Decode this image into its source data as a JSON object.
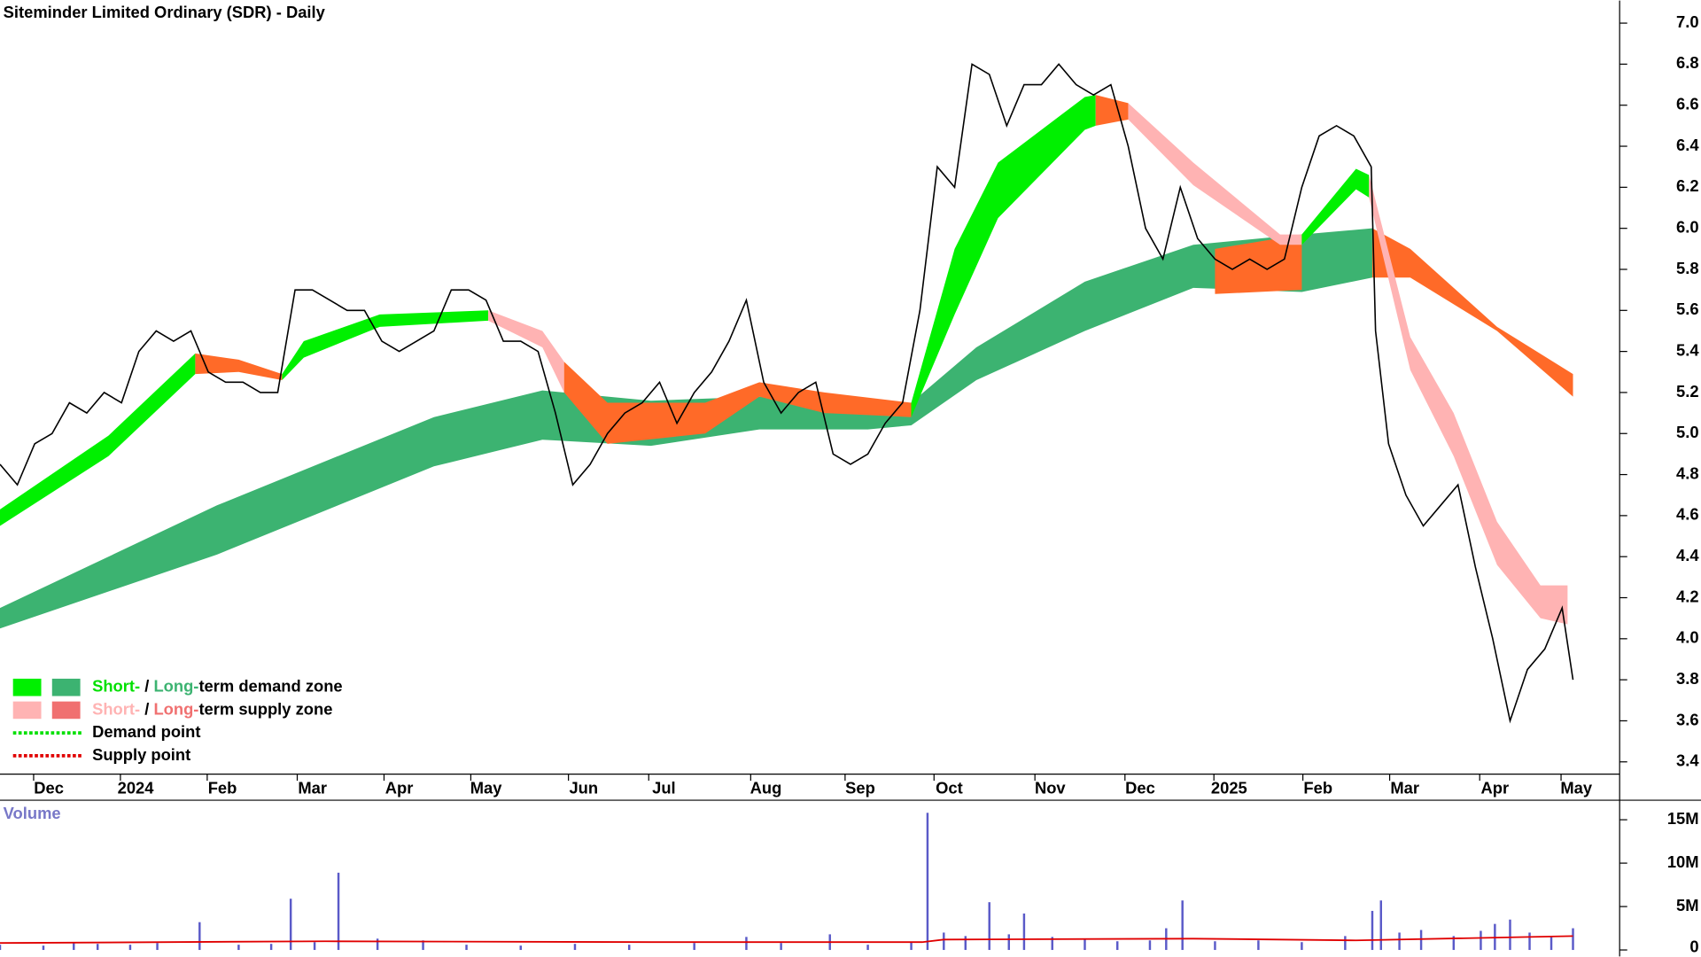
{
  "chart_data": [
    {
      "type": "line",
      "title": "Siteminder Limited Ordinary (SDR) - Daily",
      "xlim": [
        0,
        373.25
      ],
      "xticks": [
        {
          "value": 11.25,
          "label": "Dec"
        },
        {
          "value": 31.25,
          "label": "2024"
        },
        {
          "value": 51.25,
          "label": "Feb"
        },
        {
          "value": 72,
          "label": "Mar"
        },
        {
          "value": 92,
          "label": "Apr"
        },
        {
          "value": 112,
          "label": "May"
        },
        {
          "value": 134.5,
          "label": "Jun"
        },
        {
          "value": 153,
          "label": "Jul"
        },
        {
          "value": 176.5,
          "label": "Aug"
        },
        {
          "value": 198.25,
          "label": "Sep"
        },
        {
          "value": 218.75,
          "label": "Oct"
        },
        {
          "value": 242,
          "label": "Nov"
        },
        {
          "value": 262.75,
          "label": "Dec"
        },
        {
          "value": 283.25,
          "label": "2025"
        },
        {
          "value": 303.75,
          "label": "Feb"
        },
        {
          "value": 323.75,
          "label": "Mar"
        },
        {
          "value": 344.5,
          "label": "Apr"
        },
        {
          "value": 363.25,
          "label": "May"
        }
      ],
      "ylim": [
        3.34,
        7.11
      ],
      "yticks": [
        3.4,
        3.6,
        3.8,
        {
          "value": 4,
          "label": "4.0"
        },
        4.2,
        4.4,
        4.6,
        4.8,
        {
          "value": 5,
          "label": "5.0"
        },
        5.2,
        5.4,
        5.6,
        5.8,
        {
          "value": 6,
          "label": "6.0"
        },
        6.2,
        6.4,
        6.6,
        6.8,
        {
          "value": 7,
          "label": "7.0"
        }
      ],
      "bands": [
        {
          "color": "#3cb371",
          "x": [
            0,
            50,
            100,
            125,
            150,
            175,
            200,
            210,
            225,
            250,
            275,
            300,
            316.25
          ],
          "upper": [
            4.15,
            4.65,
            5.08,
            5.21,
            5.16,
            5.18,
            5.15,
            5.15,
            5.42,
            5.74,
            5.92,
            5.97,
            6.0
          ],
          "lower": [
            4.05,
            4.41,
            4.84,
            4.97,
            4.94,
            5.02,
            5.02,
            5.04,
            5.26,
            5.5,
            5.71,
            5.69,
            5.76
          ]
        },
        {
          "color": "#ff6a28",
          "x": [
            316.25,
            325,
            345,
            362.5
          ],
          "upper": [
            6.0,
            5.9,
            5.52,
            5.29
          ],
          "lower": [
            5.76,
            5.76,
            5.5,
            5.18
          ]
        },
        {
          "color": "#ff6a28",
          "x": [
            280,
            300
          ],
          "upper": [
            5.9,
            5.97
          ],
          "lower": [
            5.68,
            5.7
          ]
        },
        {
          "color": "#00f000",
          "x": [
            0,
            25,
            45
          ],
          "upper": [
            4.63,
            4.99,
            5.39
          ],
          "lower": [
            4.55,
            4.89,
            5.29
          ]
        },
        {
          "color": "#ff6a28",
          "x": [
            45,
            55,
            65
          ],
          "upper": [
            5.39,
            5.36,
            5.29
          ],
          "lower": [
            5.29,
            5.3,
            5.26
          ]
        },
        {
          "color": "#00f000",
          "x": [
            65,
            70,
            87.5,
            112.5
          ],
          "upper": [
            5.29,
            5.45,
            5.58,
            5.6
          ],
          "lower": [
            5.26,
            5.37,
            5.52,
            5.55
          ]
        },
        {
          "color": "#ffb3b3",
          "x": [
            112.5,
            125,
            130
          ],
          "upper": [
            5.6,
            5.5,
            5.35
          ],
          "lower": [
            5.55,
            5.42,
            5.2
          ]
        },
        {
          "color": "#ff6a28",
          "x": [
            130,
            140,
            162.5,
            175,
            190,
            210
          ],
          "upper": [
            5.35,
            5.15,
            5.15,
            5.25,
            5.2,
            5.15
          ],
          "lower": [
            5.2,
            4.95,
            5.0,
            5.18,
            5.1,
            5.08
          ]
        },
        {
          "color": "#00f000",
          "x": [
            210,
            220,
            230,
            250,
            252.5
          ],
          "upper": [
            5.15,
            5.9,
            6.32,
            6.64,
            6.65
          ],
          "lower": [
            5.08,
            5.58,
            6.05,
            6.48,
            6.5
          ]
        },
        {
          "color": "#ff6a28",
          "x": [
            252.5,
            260
          ],
          "upper": [
            6.65,
            6.61
          ],
          "lower": [
            6.5,
            6.53
          ]
        },
        {
          "color": "#ffb3b3",
          "x": [
            260,
            275,
            295,
            300
          ],
          "upper": [
            6.61,
            6.32,
            5.97,
            5.97
          ],
          "lower": [
            6.53,
            6.21,
            5.92,
            5.92
          ]
        },
        {
          "color": "#00f000",
          "x": [
            300,
            312.5,
            315.5
          ],
          "upper": [
            5.97,
            6.29,
            6.26
          ],
          "lower": [
            5.92,
            6.19,
            6.15
          ]
        },
        {
          "color": "#ffb3b3",
          "x": [
            315.5,
            325,
            335,
            345,
            355,
            361.25
          ],
          "upper": [
            6.26,
            5.47,
            5.1,
            4.57,
            4.26,
            4.26
          ],
          "lower": [
            6.15,
            5.31,
            4.89,
            4.36,
            4.1,
            4.07
          ]
        }
      ],
      "series": [
        {
          "color": "#000000",
          "x": [
            0,
            4,
            8,
            12,
            16,
            20,
            24,
            28,
            32,
            36,
            40,
            44,
            48,
            52,
            56,
            60,
            64,
            68,
            72,
            76,
            80,
            84,
            88,
            92,
            96,
            100,
            104,
            108,
            112,
            116,
            120,
            124,
            128,
            132,
            136,
            140,
            144,
            148,
            152,
            156,
            160,
            164,
            168,
            172,
            176,
            180,
            184,
            188,
            192,
            196,
            200,
            204,
            208,
            212,
            216,
            220,
            224,
            228,
            232,
            236,
            240,
            244,
            248,
            252,
            256,
            260,
            264,
            268,
            272,
            276,
            280,
            284,
            288,
            292,
            296,
            300,
            304,
            308,
            312,
            316,
            317,
            320,
            324,
            328,
            332,
            336,
            340,
            344,
            348,
            352,
            356,
            360,
            362.5
          ],
          "values": [
            4.85,
            4.75,
            4.95,
            5.0,
            5.15,
            5.1,
            5.2,
            5.15,
            5.4,
            5.5,
            5.45,
            5.5,
            5.3,
            5.25,
            5.25,
            5.2,
            5.2,
            5.7,
            5.7,
            5.65,
            5.6,
            5.6,
            5.45,
            5.4,
            5.45,
            5.5,
            5.7,
            5.7,
            5.65,
            5.45,
            5.45,
            5.4,
            5.1,
            4.75,
            4.85,
            5.0,
            5.1,
            5.15,
            5.25,
            5.05,
            5.2,
            5.3,
            5.45,
            5.65,
            5.25,
            5.1,
            5.2,
            5.25,
            4.9,
            4.85,
            4.9,
            5.05,
            5.15,
            5.6,
            6.3,
            6.2,
            6.8,
            6.75,
            6.5,
            6.7,
            6.7,
            6.8,
            6.7,
            6.65,
            6.7,
            6.4,
            6.0,
            5.85,
            6.2,
            5.95,
            5.85,
            5.8,
            5.85,
            5.8,
            5.85,
            6.2,
            6.45,
            6.5,
            6.45,
            6.3,
            5.5,
            4.95,
            4.7,
            4.55,
            4.65,
            4.75,
            4.35,
            4.0,
            3.6,
            3.85,
            3.95,
            4.15,
            3.8
          ]
        }
      ],
      "legend": [
        {
          "swatches": [
            "#00f000",
            "#3cb371"
          ],
          "parts": [
            {
              "text": "Short-",
              "color": "#00e000"
            },
            {
              "text": " / ",
              "color": "#000000"
            },
            {
              "text": "Long-",
              "color": "#3cb371"
            },
            {
              "text": "term demand zone",
              "color": "#000000"
            }
          ]
        },
        {
          "swatches": [
            "#ffb3b3",
            "#f07070"
          ],
          "parts": [
            {
              "text": "Short-",
              "color": "#ffb3b3"
            },
            {
              "text": " / ",
              "color": "#000000"
            },
            {
              "text": "Long-",
              "color": "#f07070"
            },
            {
              "text": "term supply zone",
              "color": "#000000"
            }
          ]
        },
        {
          "line": "#00e000",
          "parts": [
            {
              "text": "Demand point",
              "color": "#000000"
            }
          ]
        },
        {
          "line": "#e00000",
          "parts": [
            {
              "text": "Supply point",
              "color": "#000000"
            }
          ]
        }
      ]
    },
    {
      "type": "bar",
      "title": "Volume",
      "xlim": [
        0,
        373.25
      ],
      "ylim": [
        0,
        17.25
      ],
      "yticks": [
        0,
        {
          "value": 5,
          "label": "5M"
        },
        {
          "value": 10,
          "label": "10M"
        },
        {
          "value": 15,
          "label": "15M"
        }
      ],
      "series": [
        {
          "color": "#5a5ac8",
          "x": [
            0,
            10,
            17,
            22.5,
            30,
            36.25,
            46,
            55,
            62.5,
            67,
            72.5,
            78,
            87,
            97.5,
            107.5,
            120,
            132.5,
            145,
            160,
            172,
            180,
            191.25,
            200,
            210,
            213.75,
            217.5,
            222.5,
            228,
            232.5,
            236,
            242.5,
            250,
            257.5,
            265,
            268.75,
            272.5,
            280,
            290,
            300,
            310,
            316.25,
            318.25,
            322.5,
            327.5,
            335,
            341.25,
            344.5,
            348,
            352.5,
            357.5,
            362.5
          ],
          "values": [
            0.6,
            0.5,
            0.9,
            0.7,
            0.6,
            0.8,
            3.2,
            0.6,
            0.7,
            5.9,
            0.9,
            8.9,
            1.3,
            1.1,
            0.6,
            0.5,
            0.7,
            0.6,
            0.8,
            1.5,
            0.8,
            1.8,
            0.6,
            0.9,
            15.8,
            2.0,
            1.6,
            5.5,
            1.8,
            4.2,
            1.5,
            1.2,
            1.0,
            1.1,
            2.5,
            5.7,
            1.0,
            1.1,
            0.9,
            1.6,
            4.5,
            5.7,
            2.0,
            2.3,
            1.6,
            2.2,
            3.0,
            3.5,
            2.0,
            1.5,
            2.5
          ]
        },
        {
          "color": "#e00000",
          "x": [
            0,
            75,
            150,
            212.5,
            217.5,
            275,
            312.5,
            362.5
          ],
          "values": [
            0.8,
            1.0,
            0.9,
            0.9,
            1.2,
            1.3,
            1.1,
            1.6
          ]
        }
      ]
    }
  ]
}
